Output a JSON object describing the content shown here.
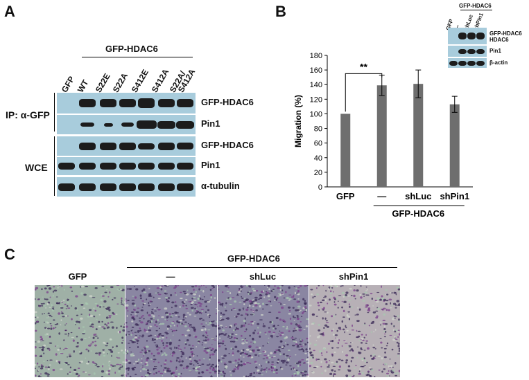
{
  "panels": {
    "a": "A",
    "b": "B",
    "c": "C"
  },
  "panel_a": {
    "group_label": "GFP-HDAC6",
    "lanes": [
      "GFP",
      "WT",
      "S22E",
      "S22A",
      "S412E",
      "S412A",
      "S22A/\nS412A"
    ],
    "ip_label": "IP: α-GFP",
    "wce_label": "WCE",
    "row_labels": [
      "GFP-HDAC6",
      "Pin1",
      "GFP-HDAC6",
      "Pin1",
      "α-tubulin"
    ]
  },
  "panel_b": {
    "inset": {
      "group_label": "GFP-HDAC6",
      "lanes": [
        "GFP",
        "—",
        "shLuc",
        "shPin1"
      ],
      "row_labels": [
        "GFP-HDAC6",
        "HDAC6",
        "Pin1",
        "β-actin"
      ]
    },
    "significance": "**",
    "group_label": "GFP-HDAC6"
  },
  "chart_data": {
    "type": "bar",
    "categories": [
      "GFP",
      "—",
      "shLuc",
      "shPin1"
    ],
    "values": [
      100,
      139,
      141,
      113
    ],
    "errors": [
      0,
      14,
      19,
      11
    ],
    "ylabel": "Migration (%)",
    "ylim": [
      0,
      180
    ],
    "yticks": [
      0,
      20,
      40,
      60,
      80,
      100,
      120,
      140,
      160,
      180
    ],
    "color": "#6e6e6e"
  },
  "panel_c": {
    "group_label": "GFP-HDAC6",
    "labels": [
      "GFP",
      "—",
      "shLuc",
      "shPin1"
    ],
    "densities": [
      0.35,
      0.75,
      0.7,
      0.4
    ]
  }
}
